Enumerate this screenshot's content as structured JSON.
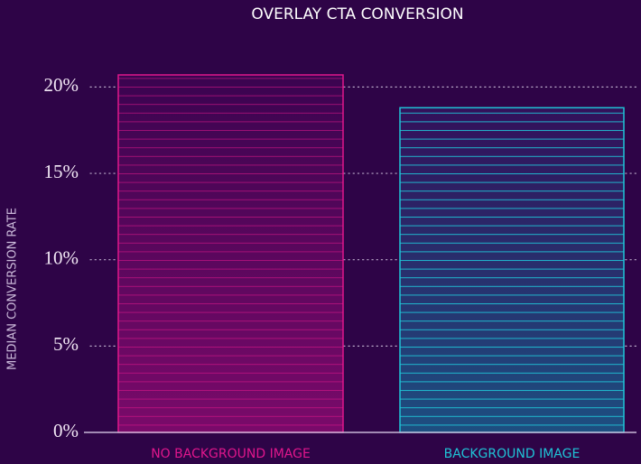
{
  "chart_data": {
    "type": "bar",
    "title": "OVERLAY CTA CONVERSION",
    "y_label": "MEDIAN CONVERSION RATE",
    "categories": [
      "NO BACKGROUND IMAGE",
      "BACKGROUND IMAGE"
    ],
    "values": [
      20.7,
      18.8
    ],
    "colors": [
      "#e0168c",
      "#1fc3d6"
    ],
    "ylim": [
      0,
      20.7
    ],
    "yticks": [
      {
        "value": 0,
        "label": "0%"
      },
      {
        "value": 5,
        "label": "5%"
      },
      {
        "value": 10,
        "label": "10%"
      },
      {
        "value": 15,
        "label": "15%"
      },
      {
        "value": 20,
        "label": "20%"
      }
    ],
    "grid": true
  }
}
